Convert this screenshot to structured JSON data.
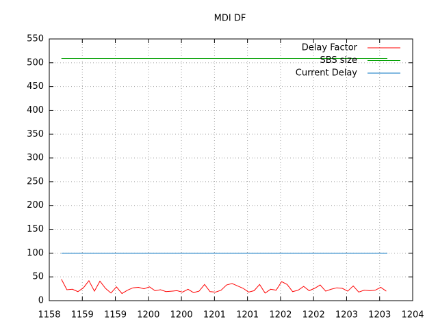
{
  "chart_data": {
    "type": "line",
    "title": "MDI DF",
    "xlim": [
      43110,
      43440
    ],
    "xticks": [
      {
        "value": 43110,
        "label": "1158"
      },
      {
        "value": 43140,
        "label": "1159"
      },
      {
        "value": 43170,
        "label": "1159"
      },
      {
        "value": 43200,
        "label": "1200"
      },
      {
        "value": 43230,
        "label": "1200"
      },
      {
        "value": 43260,
        "label": "1201"
      },
      {
        "value": 43290,
        "label": "1201"
      },
      {
        "value": 43320,
        "label": "1202"
      },
      {
        "value": 43350,
        "label": "1202"
      },
      {
        "value": 43380,
        "label": "1203"
      },
      {
        "value": 43410,
        "label": "1203"
      },
      {
        "value": 43440,
        "label": "1204"
      }
    ],
    "ylim": [
      0,
      550
    ],
    "yticks": [
      0,
      50,
      100,
      150,
      200,
      250,
      300,
      350,
      400,
      450,
      500,
      550
    ],
    "grid": true,
    "legend": "top-right",
    "series": [
      {
        "name": "Delay Factor",
        "color": "#ff0000",
        "x": [
          43121,
          43126,
          43131,
          43136,
          43141,
          43146,
          43151,
          43156,
          43161,
          43166,
          43171,
          43176,
          43181,
          43186,
          43191,
          43196,
          43201,
          43206,
          43211,
          43216,
          43221,
          43226,
          43231,
          43236,
          43241,
          43246,
          43251,
          43256,
          43261,
          43266,
          43271,
          43276,
          43281,
          43286,
          43291,
          43296,
          43301,
          43306,
          43311,
          43316,
          43321,
          43326,
          43331,
          43336,
          43341,
          43346,
          43351,
          43356,
          43361,
          43366,
          43371,
          43376,
          43381,
          43386,
          43391,
          43396,
          43401,
          43406,
          43411,
          43416
        ],
        "values": [
          45,
          23,
          24,
          19,
          27,
          42,
          20,
          41,
          26,
          16,
          29,
          15,
          22,
          27,
          28,
          25,
          29,
          21,
          23,
          19,
          20,
          21,
          18,
          24,
          17,
          20,
          34,
          19,
          18,
          22,
          33,
          36,
          31,
          26,
          18,
          21,
          34,
          16,
          24,
          22,
          40,
          34,
          19,
          22,
          30,
          21,
          26,
          33,
          20,
          24,
          27,
          26,
          20,
          31,
          18,
          22,
          21,
          22,
          28,
          20
        ]
      },
      {
        "name": "SBS size",
        "color": "#00a000",
        "x": [
          43121,
          43417
        ],
        "values": [
          509,
          509
        ]
      },
      {
        "name": "Current Delay",
        "color": "#0070c0",
        "x": [
          43121,
          43417
        ],
        "values": [
          100,
          100
        ]
      }
    ]
  }
}
